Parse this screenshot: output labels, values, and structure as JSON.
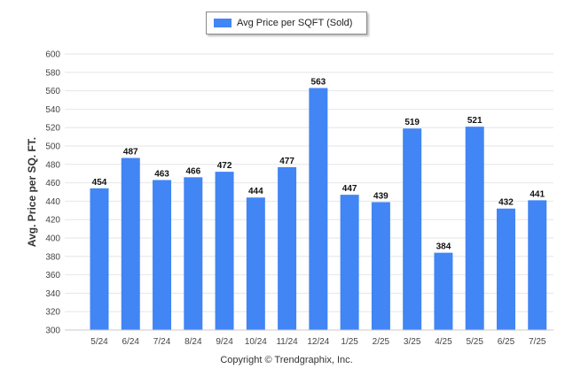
{
  "legend": {
    "label": "Avg Price per SQFT (Sold)",
    "color": "#4285f4"
  },
  "footer": {
    "copyright": "Copyright © Trendgraphix, Inc."
  },
  "chart_data": {
    "type": "bar",
    "title": "",
    "xlabel": "",
    "ylabel": "Avg. Price per SQ. FT.",
    "ylim": [
      300,
      600
    ],
    "yticks": [
      300,
      320,
      340,
      360,
      380,
      400,
      420,
      440,
      460,
      480,
      500,
      520,
      540,
      560,
      580,
      600
    ],
    "grid": true,
    "legend_position": "top-center",
    "categories": [
      "5/24",
      "6/24",
      "7/24",
      "8/24",
      "9/24",
      "10/24",
      "11/24",
      "12/24",
      "1/25",
      "2/25",
      "3/25",
      "4/25",
      "5/25",
      "6/25",
      "7/25"
    ],
    "series": [
      {
        "name": "Avg Price per SQFT (Sold)",
        "color": "#4285f4",
        "values": [
          454,
          487,
          463,
          466,
          472,
          444,
          477,
          563,
          447,
          439,
          519,
          384,
          521,
          432,
          441
        ]
      }
    ]
  }
}
